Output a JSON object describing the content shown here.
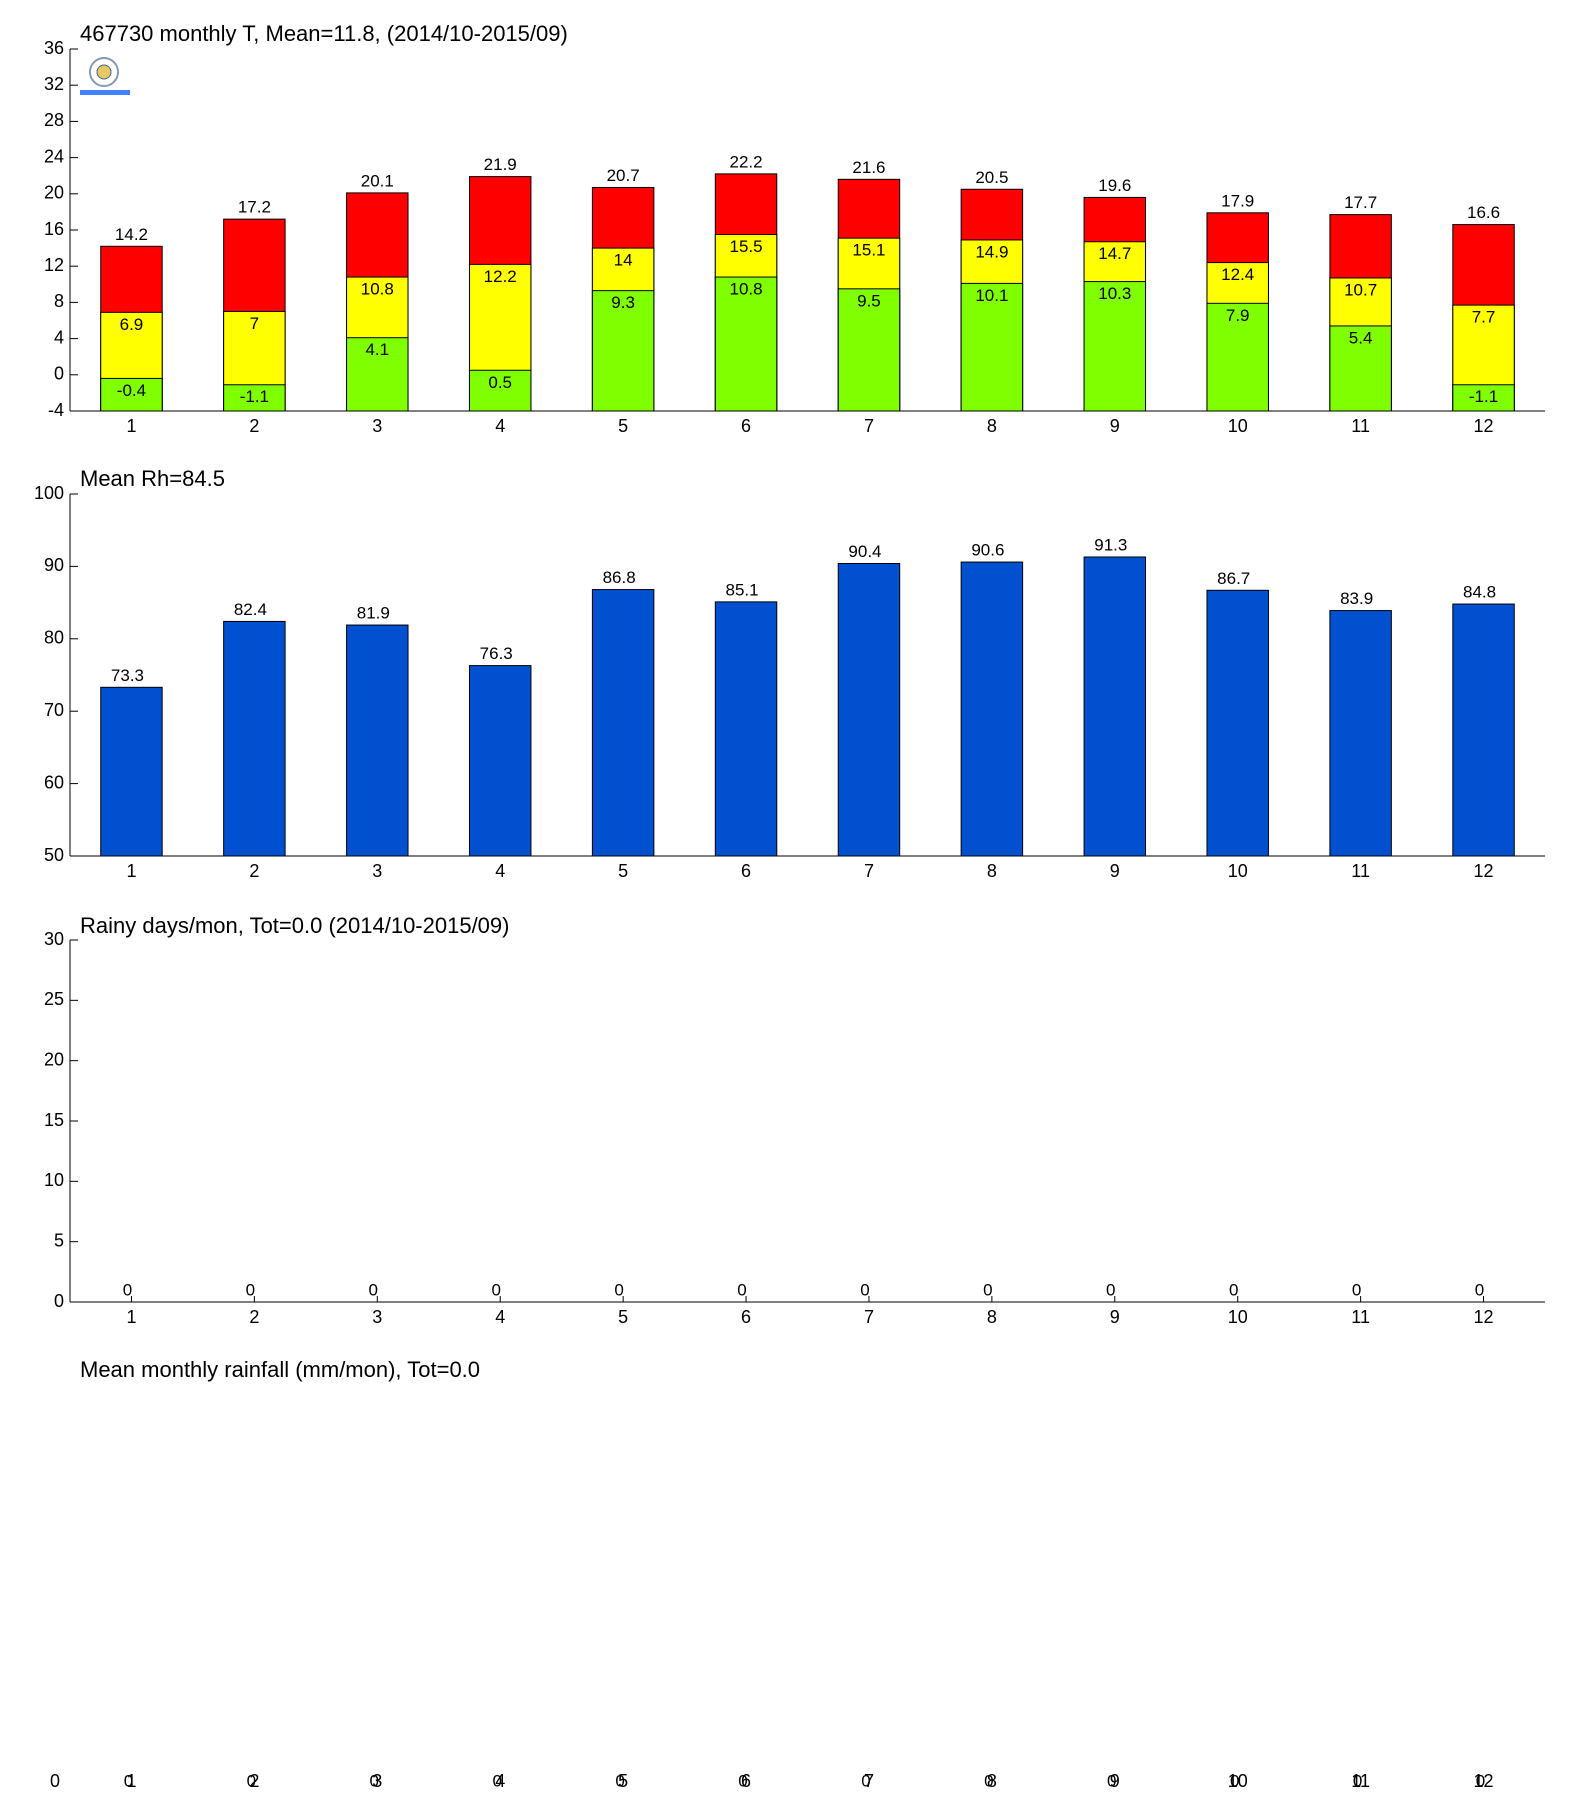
{
  "chart_data": [
    {
      "type": "bar",
      "title": "467730 monthly T, Mean=11.8, (2014/10-2015/09)",
      "categories": [
        "1",
        "2",
        "3",
        "4",
        "5",
        "6",
        "7",
        "8",
        "9",
        "10",
        "11",
        "12"
      ],
      "series": [
        {
          "color": "#ff0000",
          "values": [
            14.2,
            17.2,
            20.1,
            21.9,
            20.7,
            22.2,
            21.6,
            20.5,
            19.6,
            17.9,
            17.7,
            16.6
          ]
        },
        {
          "color": "#ffff00",
          "values": [
            6.9,
            7,
            10.8,
            12.2,
            14,
            15.5,
            15.1,
            14.9,
            14.7,
            12.4,
            10.7,
            7.7
          ]
        },
        {
          "color": "#80ff00",
          "values": [
            -0.4,
            -1.1,
            4.1,
            0.5,
            9.3,
            10.8,
            9.5,
            10.1,
            10.3,
            7.9,
            5.4,
            -1.1
          ]
        }
      ],
      "ylim": [
        -4,
        36
      ],
      "yticks": [
        -4,
        0,
        4,
        8,
        12,
        16,
        20,
        24,
        28,
        32,
        36
      ]
    },
    {
      "type": "bar",
      "title": "Mean Rh=84.5",
      "categories": [
        "1",
        "2",
        "3",
        "4",
        "5",
        "6",
        "7",
        "8",
        "9",
        "10",
        "11",
        "12"
      ],
      "values": [
        73.3,
        82.4,
        81.9,
        76.3,
        86.8,
        85.1,
        90.4,
        90.6,
        91.3,
        86.7,
        83.9,
        84.8
      ],
      "color": "#0050d0",
      "ylim": [
        50,
        100
      ],
      "yticks": [
        50,
        60,
        70,
        80,
        90,
        100
      ]
    },
    {
      "type": "bar",
      "title": "Rainy days/mon, Tot=0.0 (2014/10-2015/09)",
      "categories": [
        "1",
        "2",
        "3",
        "4",
        "5",
        "6",
        "7",
        "8",
        "9",
        "10",
        "11",
        "12"
      ],
      "values": [
        0,
        0,
        0,
        0,
        0,
        0,
        0,
        0,
        0,
        0,
        0,
        0
      ],
      "ylim": [
        0,
        30
      ],
      "yticks": [
        0,
        5,
        10,
        15,
        20,
        25,
        30
      ]
    },
    {
      "type": "bar",
      "title": "Mean monthly rainfall (mm/mon), Tot=0.0",
      "categories": [
        "1",
        "2",
        "3",
        "4",
        "5",
        "6",
        "7",
        "8",
        "9",
        "10",
        "11",
        "12"
      ],
      "values": [
        0,
        0,
        0,
        0,
        0,
        0,
        0,
        0,
        0,
        0,
        0,
        0
      ],
      "yticks": [
        0
      ],
      "axis_lines": false
    }
  ]
}
